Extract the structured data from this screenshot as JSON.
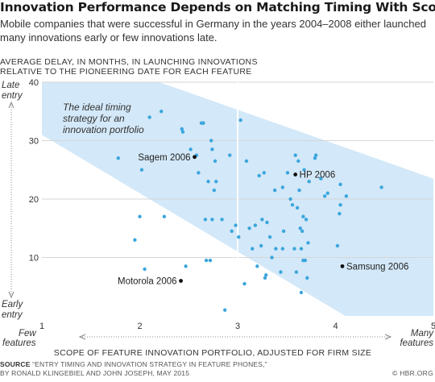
{
  "header": {
    "title": "Innovation Performance Depends on Matching Timing With Scope",
    "subtitle": "Mobile companies that were successful in Germany in the years 2004–2008 either launched many innovations early or few innovations late."
  },
  "footer": {
    "source_label": "SOURCE",
    "source_text": "“ENTRY TIMING AND INNOVATION STRATEGY IN FEATURE PHONES,”",
    "source_text2": "BY RONALD KLINGEBIEL AND JOHN JOSEPH, MAY 2015",
    "credit": "© HBR.ORG"
  },
  "chart_data": {
    "type": "scatter",
    "ylabel_line1": "AVERAGE DELAY, IN MONTHS, IN LAUNCHING INNOVATIONS",
    "ylabel_line2": "RELATIVE TO THE PIONEERING DATE FOR EACH FEATURE",
    "xlabel": "SCOPE OF FEATURE INNOVATION PORTFOLIO, ADJUSTED FOR FIRM SIZE",
    "y_top_label": [
      "Late",
      "entry"
    ],
    "y_bottom_label": [
      "Early",
      "entry"
    ],
    "x_left_label": [
      "Few",
      "features"
    ],
    "x_right_label": [
      "Many",
      "features"
    ],
    "xlim": [
      1,
      5
    ],
    "ylim": [
      0,
      40
    ],
    "x_ticks": [
      "1",
      "2",
      "3",
      "4",
      "5"
    ],
    "y_ticks": [
      "10",
      "20",
      "30",
      "40"
    ],
    "band_label": [
      "The ideal timing",
      "strategy for an",
      "innovation portfolio"
    ],
    "band_color": "#d3e8f8",
    "point_color": "#3aa6dd",
    "highlight_color": "#111111",
    "band": {
      "upper": [
        [
          1,
          40
        ],
        [
          2.2,
          40
        ],
        [
          5,
          23.5
        ]
      ],
      "lower": [
        [
          1,
          31
        ],
        [
          4.1,
          0
        ],
        [
          5,
          0
        ],
        [
          5,
          7
        ]
      ]
    },
    "points": [
      [
        1.78,
        27
      ],
      [
        1.95,
        13
      ],
      [
        2.0,
        17
      ],
      [
        2.02,
        25
      ],
      [
        2.05,
        8
      ],
      [
        2.1,
        34
      ],
      [
        2.22,
        35
      ],
      [
        2.25,
        17
      ],
      [
        2.43,
        32
      ],
      [
        2.44,
        31.5
      ],
      [
        2.47,
        8.5
      ],
      [
        2.52,
        28.5
      ],
      [
        2.58,
        27.5
      ],
      [
        2.6,
        24.5
      ],
      [
        2.63,
        33
      ],
      [
        2.65,
        33
      ],
      [
        2.67,
        16.5
      ],
      [
        2.68,
        9.5
      ],
      [
        2.7,
        23
      ],
      [
        2.72,
        9.5
      ],
      [
        2.73,
        30
      ],
      [
        2.74,
        28.5
      ],
      [
        2.74,
        16.5
      ],
      [
        2.76,
        21.5
      ],
      [
        2.77,
        26.5
      ],
      [
        2.78,
        23
      ],
      [
        2.84,
        16.5
      ],
      [
        2.87,
        1
      ],
      [
        2.92,
        27.5
      ],
      [
        2.94,
        14.5
      ],
      [
        2.98,
        15.5
      ],
      [
        3.01,
        13.5
      ],
      [
        3.03,
        33.5
      ],
      [
        3.07,
        5.5
      ],
      [
        3.09,
        26.5
      ],
      [
        3.12,
        15
      ],
      [
        3.15,
        11.5
      ],
      [
        3.18,
        15.5
      ],
      [
        3.2,
        8.5
      ],
      [
        3.22,
        24
      ],
      [
        3.24,
        12
      ],
      [
        3.25,
        16.5
      ],
      [
        3.27,
        24.5
      ],
      [
        3.28,
        6.5
      ],
      [
        3.29,
        7
      ],
      [
        3.3,
        16
      ],
      [
        3.33,
        13.5
      ],
      [
        3.35,
        10
      ],
      [
        3.38,
        21.5
      ],
      [
        3.39,
        11.5
      ],
      [
        3.44,
        7.5
      ],
      [
        3.46,
        11.5
      ],
      [
        3.46,
        22
      ],
      [
        3.47,
        14.5
      ],
      [
        3.51,
        24.5
      ],
      [
        3.54,
        20
      ],
      [
        3.56,
        19
      ],
      [
        3.58,
        11.5
      ],
      [
        3.59,
        27.5
      ],
      [
        3.6,
        7.5
      ],
      [
        3.61,
        18.5
      ],
      [
        3.62,
        26.5
      ],
      [
        3.63,
        21.5
      ],
      [
        3.64,
        15
      ],
      [
        3.65,
        4
      ],
      [
        3.65,
        11.5
      ],
      [
        3.66,
        14.5
      ],
      [
        3.67,
        17
      ],
      [
        3.67,
        9.5
      ],
      [
        3.68,
        25
      ],
      [
        3.69,
        9.5
      ],
      [
        3.7,
        16.5
      ],
      [
        3.71,
        6.5
      ],
      [
        3.72,
        12.5
      ],
      [
        3.73,
        23
      ],
      [
        3.79,
        27
      ],
      [
        3.8,
        27.5
      ],
      [
        3.85,
        23.5
      ],
      [
        3.89,
        20.5
      ],
      [
        3.92,
        21
      ],
      [
        4.02,
        12
      ],
      [
        4.04,
        17.5
      ],
      [
        4.05,
        22.5
      ],
      [
        4.05,
        19
      ],
      [
        4.11,
        20.5
      ],
      [
        4.47,
        22
      ]
    ],
    "highlights": [
      {
        "name": "Sagem 2006",
        "x": 2.56,
        "y": 27.2,
        "label_side": "left"
      },
      {
        "name": "HP 2006",
        "x": 3.59,
        "y": 24.2,
        "label_side": "right"
      },
      {
        "name": "Samsung 2006",
        "x": 4.07,
        "y": 8.5,
        "label_side": "right"
      },
      {
        "name": "Motorola 2006",
        "x": 2.42,
        "y": 6,
        "label_side": "left"
      }
    ]
  }
}
